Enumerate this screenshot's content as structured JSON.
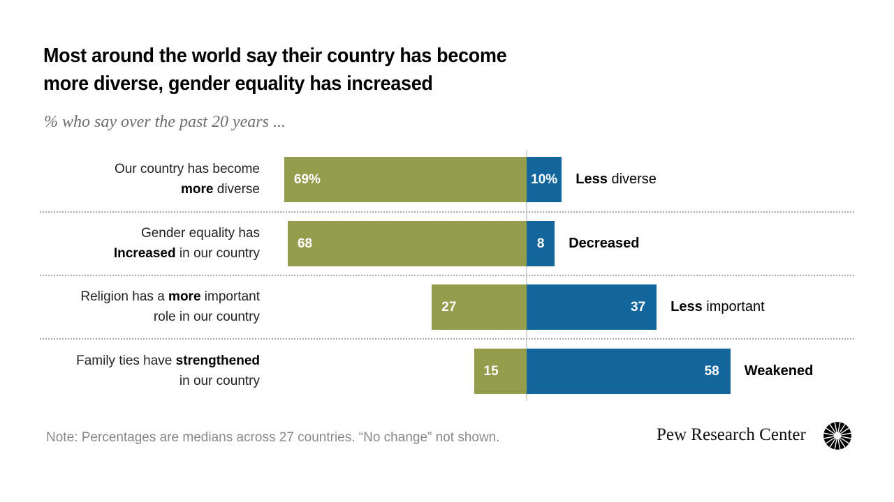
{
  "header": {
    "title_line1": "Most around the world say their country has become",
    "title_line2": "more diverse, gender equality has increased",
    "subtitle": "% who say over the past 20 years ..."
  },
  "colors": {
    "positive": "#949d4c",
    "negative": "#13669b"
  },
  "rows": [
    {
      "label_pre": "Our country has become",
      "label_bold": "more",
      "label_post": " diverse",
      "label_layout": "line2bold",
      "pos_label": "69%",
      "neg_label": "10%",
      "right_bold": "Less",
      "right_rest": " diverse"
    },
    {
      "label_pre": "Gender equality has",
      "label_bold": "Increased",
      "label_post": " in our country",
      "label_layout": "line2bold",
      "pos_label": "68",
      "neg_label": "8",
      "right_bold": "Decreased",
      "right_rest": ""
    },
    {
      "label_pre": "Religion has a ",
      "label_bold": "more",
      "label_post": " important",
      "label_line2": "role in our country",
      "label_layout": "line1bold",
      "pos_label": "27",
      "neg_label": "37",
      "right_bold": "Less",
      "right_rest": " important"
    },
    {
      "label_pre": "Family ties have ",
      "label_bold": "strengthened",
      "label_post": "",
      "label_line2": "in our country",
      "label_layout": "line1bold",
      "pos_label": "15",
      "neg_label": "58",
      "right_bold": "Weakened",
      "right_rest": ""
    }
  ],
  "chart_data": {
    "type": "bar",
    "orientation": "horizontal-diverging",
    "title": "Most around the world say their country has become more diverse, gender equality has increased",
    "subtitle": "% who say over the past 20 years ...",
    "categories": [
      "Our country has become more diverse / Less diverse",
      "Gender equality has Increased in our country / Decreased",
      "Religion has a more important role in our country / Less important",
      "Family ties have strengthened in our country / Weakened"
    ],
    "series": [
      {
        "name": "More / Increased / Strengthened",
        "side": "left",
        "values": [
          69,
          68,
          27,
          15
        ]
      },
      {
        "name": "Less / Decreased / Weakened",
        "side": "right",
        "values": [
          10,
          8,
          37,
          58
        ]
      }
    ],
    "unit": "%",
    "xlabel": "",
    "ylabel": "",
    "grid": false,
    "note": "Note: Percentages are medians across 27 countries. “No change” not shown."
  },
  "footer": {
    "note": "Note: Percentages are medians across 27 countries. “No change” not shown.",
    "brand": "Pew Research Center"
  }
}
